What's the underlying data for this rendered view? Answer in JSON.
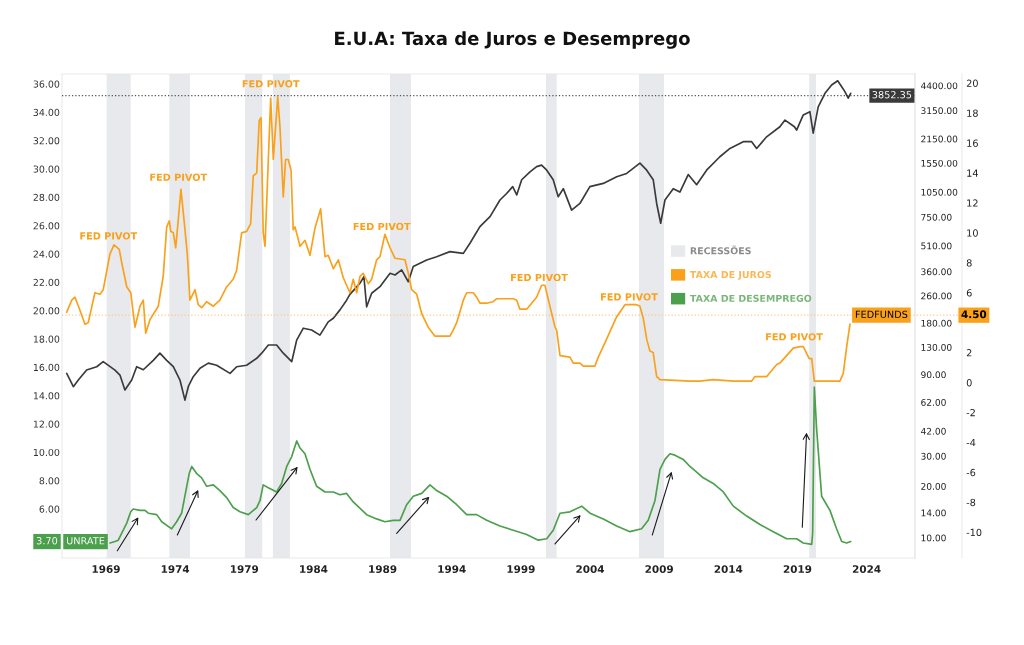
{
  "chart_data": {
    "type": "line",
    "title": "E.U.A: Taxa de Juros e Desemprego",
    "xlim": [
      1965.82,
      2027.5
    ],
    "xticks": [
      1969,
      1974,
      1979,
      1984,
      1989,
      1994,
      1999,
      2004,
      2009,
      2014,
      2019,
      2024
    ],
    "ylim": [
      2.54,
      36.7
    ],
    "yticks": [
      {
        "value": 6,
        "label": "6.00"
      },
      {
        "value": 8,
        "label": "8.00"
      },
      {
        "value": 10,
        "label": "10.00"
      },
      {
        "value": 12,
        "label": "12.00"
      },
      {
        "value": 14,
        "label": "14.00"
      },
      {
        "value": 16,
        "label": "16.00"
      },
      {
        "value": 18,
        "label": "18.00"
      },
      {
        "value": 20,
        "label": "20.00"
      },
      {
        "value": 22,
        "label": "22.00"
      },
      {
        "value": 24,
        "label": "24.00"
      },
      {
        "value": 26,
        "label": "26.00"
      },
      {
        "value": 28,
        "label": "28.00"
      },
      {
        "value": 30,
        "label": "30.00"
      },
      {
        "value": 32,
        "label": "32.00"
      },
      {
        "value": 34,
        "label": "34.00"
      },
      {
        "value": 36,
        "label": "36.00"
      }
    ],
    "y2lim": [
      7.61,
      5150
    ],
    "y2ticks": [
      {
        "value": 10,
        "label": "10.00"
      },
      {
        "value": 14,
        "label": "14.00"
      },
      {
        "value": 20,
        "label": "20.00"
      },
      {
        "value": 30,
        "label": "30.00"
      },
      {
        "value": 42,
        "label": "42.00"
      },
      {
        "value": 62,
        "label": "62.00"
      },
      {
        "value": 90,
        "label": "90.00"
      },
      {
        "value": 130,
        "label": "130.00"
      },
      {
        "value": 180,
        "label": "180.00"
      },
      {
        "value": 260,
        "label": "260.00"
      },
      {
        "value": 360,
        "label": "360.00"
      },
      {
        "value": 510,
        "label": "510.00"
      },
      {
        "value": 750,
        "label": "750.00"
      },
      {
        "value": 1050,
        "label": "1050.00"
      },
      {
        "value": 1550,
        "label": "1550.00"
      },
      {
        "value": 2150,
        "label": "2150.00"
      },
      {
        "value": 3150,
        "label": "3150.00"
      },
      {
        "value": 4400,
        "label": "4400.00"
      }
    ],
    "y3lim": [
      -11.72,
      20.61
    ],
    "y3ticks": [
      -10,
      -8,
      -6,
      -4,
      -2,
      0,
      2,
      6,
      8,
      10,
      12,
      14,
      16,
      18,
      20
    ],
    "log": "y2",
    "legend": "right",
    "series": [
      {
        "axis": "y2",
        "color": "#3a3a3a",
        "x": [
          1966.16,
          1966.64,
          1967.0,
          1967.6,
          1968.33,
          1968.8,
          1969.65,
          1970.01,
          1970.37,
          1970.86,
          1971.22,
          1971.7,
          1972.42,
          1972.9,
          1973.39,
          1973.87,
          1974.35,
          1974.71,
          1974.95,
          1975.31,
          1975.8,
          1976.4,
          1977.0,
          1977.97,
          1978.45,
          1979.17,
          1979.9,
          1980.26,
          1980.74,
          1981.34,
          1981.82,
          1982.43,
          1982.79,
          1983.27,
          1983.87,
          1984.47,
          1985.07,
          1985.44,
          1985.92,
          1986.4,
          1986.64,
          1987.37,
          1987.65,
          1987.85,
          1988.21,
          1988.81,
          1989.54,
          1989.9,
          1990.38,
          1990.86,
          1991.22,
          1992.19,
          1992.91,
          1993.87,
          1994.84,
          1995.32,
          1996.04,
          1996.77,
          1997.49,
          1997.97,
          1998.41,
          1998.7,
          1999.06,
          1999.66,
          2000.14,
          2000.5,
          2000.87,
          2001.34,
          2001.7,
          2002.07,
          2002.67,
          2003.27,
          2003.99,
          2004.96,
          2005.93,
          2006.65,
          2007.61,
          2008.1,
          2008.57,
          2008.82,
          2009.11,
          2009.42,
          2010.02,
          2010.5,
          2011.1,
          2011.71,
          2012.43,
          2013.39,
          2014.12,
          2015.08,
          2015.69,
          2016.05,
          2016.77,
          2017.73,
          2018.1,
          2018.78,
          2018.94,
          2019.42,
          2019.9,
          2020.14,
          2020.5,
          2020.99,
          2021.47,
          2021.91,
          2022.2,
          2022.43,
          2022.67,
          2022.85
        ],
        "values": [
          91.4,
          76.4,
          83.6,
          95.6,
          100,
          107,
          95.6,
          89.4,
          73.1,
          83.6,
          100,
          96,
          109,
          120,
          109,
          100,
          83.6,
          63.8,
          76.4,
          87.4,
          97.9,
          105,
          102,
          91.4,
          100,
          102,
          112,
          120,
          134,
          134,
          120,
          107,
          143,
          168,
          164,
          153,
          183,
          192,
          215,
          245,
          265,
          308,
          336,
          224,
          269,
          294,
          352,
          344,
          368,
          314,
          385,
          421,
          440,
          471,
          460,
          527,
          659,
          754,
          944,
          1030,
          1130,
          1010,
          1240,
          1380,
          1480,
          1510,
          1410,
          1240,
          987,
          1100,
          824,
          901,
          1130,
          1180,
          1290,
          1350,
          1550,
          1410,
          1240,
          901,
          690,
          944,
          1100,
          1050,
          1330,
          1160,
          1410,
          1690,
          1890,
          2070,
          2070,
          1890,
          2210,
          2530,
          2770,
          2530,
          2420,
          2970,
          3100,
          2320,
          3310,
          3970,
          4440,
          4700,
          4340,
          4060,
          3720,
          3970
        ]
      },
      {
        "axis": "y3",
        "name": "TAXA DE JUROS",
        "color": "#f9a11b",
        "x": [
          1966.16,
          1966.52,
          1966.76,
          1967.05,
          1967.48,
          1967.72,
          1968.2,
          1968.57,
          1968.8,
          1969.29,
          1969.58,
          1969.96,
          1970.14,
          1970.5,
          1970.79,
          1971.1,
          1971.46,
          1971.7,
          1971.87,
          1972.18,
          1972.78,
          1973.14,
          1973.39,
          1973.58,
          1973.68,
          1973.87,
          1974.04,
          1974.23,
          1974.42,
          1974.64,
          1974.88,
          1975.07,
          1975.44,
          1975.67,
          1975.92,
          1976.28,
          1976.76,
          1977.24,
          1977.73,
          1978.2,
          1978.45,
          1978.81,
          1979.17,
          1979.46,
          1979.65,
          1979.9,
          1980.08,
          1980.21,
          1980.37,
          1980.5,
          1980.74,
          1980.91,
          1981.1,
          1981.42,
          1981.58,
          1981.82,
          1981.99,
          1982.18,
          1982.38,
          1982.54,
          1982.67,
          1983.03,
          1983.39,
          1983.75,
          1984.11,
          1984.52,
          1984.84,
          1985.07,
          1985.44,
          1985.8,
          1986.16,
          1986.64,
          1986.88,
          1987.13,
          1987.37,
          1987.6,
          1987.97,
          1988.21,
          1988.57,
          1988.81,
          1989.17,
          1989.54,
          1989.9,
          1990.62,
          1990.86,
          1991.1,
          1991.47,
          1991.83,
          1992.3,
          1992.79,
          1993.87,
          1994.11,
          1994.36,
          1994.84,
          1995.08,
          1995.56,
          1995.8,
          1996.04,
          1996.53,
          1997.0,
          1997.25,
          1998.45,
          1998.7,
          1998.93,
          1999.42,
          1999.78,
          2000.14,
          2000.5,
          2000.74,
          2001.1,
          2001.47,
          2001.59,
          2001.83,
          2002.55,
          2002.79,
          2003.27,
          2003.51,
          2004.36,
          2004.6,
          2005.2,
          2005.93,
          2006.53,
          2007.37,
          2007.61,
          2007.85,
          2008.1,
          2008.33,
          2008.57,
          2008.82,
          2009.06,
          2011.23,
          2011.95,
          2012.91,
          2014.36,
          2015.69,
          2015.93,
          2016.78,
          2017.5,
          2017.73,
          2018.7,
          2019.18,
          2019.42,
          2019.85,
          2020.03,
          2020.22,
          2022.07,
          2022.31,
          2022.56,
          2022.8
        ],
        "values": [
          4.7,
          5.5,
          5.7,
          5.0,
          3.9,
          4.0,
          6.0,
          5.9,
          6.2,
          8.6,
          9.2,
          8.9,
          8.0,
          6.4,
          6.0,
          3.7,
          5.1,
          5.5,
          3.3,
          4.2,
          5.1,
          7.1,
          10.4,
          10.8,
          10.1,
          10.0,
          9.0,
          10.9,
          12.9,
          10.9,
          8.6,
          5.5,
          6.2,
          5.2,
          5.0,
          5.4,
          5.1,
          5.5,
          6.4,
          6.9,
          7.5,
          10.0,
          10.1,
          10.6,
          13.8,
          14.0,
          17.5,
          17.7,
          10.0,
          9.1,
          14.9,
          19.0,
          14.9,
          19.1,
          17.1,
          12.4,
          14.9,
          14.9,
          14.2,
          10.2,
          10.4,
          9.1,
          9.5,
          8.5,
          10.3,
          11.6,
          8.4,
          8.5,
          7.6,
          8.2,
          7.0,
          6.0,
          6.9,
          6.0,
          7.1,
          7.3,
          6.6,
          6.9,
          8.2,
          8.4,
          9.9,
          9.0,
          8.3,
          8.2,
          7.3,
          6.2,
          5.9,
          4.6,
          3.7,
          3.1,
          3.1,
          3.5,
          4.0,
          5.5,
          6.0,
          6.0,
          5.7,
          5.3,
          5.3,
          5.4,
          5.6,
          5.6,
          5.5,
          4.9,
          4.9,
          5.3,
          5.7,
          6.5,
          6.5,
          5.1,
          3.7,
          3.5,
          1.8,
          1.7,
          1.3,
          1.3,
          1.1,
          1.1,
          1.7,
          2.9,
          4.4,
          5.2,
          5.2,
          5.1,
          4.3,
          2.9,
          2.1,
          2.0,
          0.4,
          0.2,
          0.1,
          0.1,
          0.2,
          0.1,
          0.1,
          0.4,
          0.4,
          1.2,
          1.3,
          2.3,
          2.4,
          2.4,
          1.6,
          1.6,
          0.1,
          0.1,
          0.6,
          2.4,
          3.9
        ]
      },
      {
        "axis": "y",
        "name": "TAXA DE DESEMPREGO",
        "color": "#4c9f4c",
        "x": [
          1969.29,
          1969.65,
          1969.89,
          1970.14,
          1970.5,
          1970.79,
          1970.97,
          1971.46,
          1971.82,
          1972.06,
          1972.67,
          1973.03,
          1973.75,
          1974.11,
          1974.47,
          1974.84,
          1975.02,
          1975.2,
          1975.56,
          1975.92,
          1976.28,
          1976.76,
          1977.24,
          1977.73,
          1978.2,
          1978.69,
          1979.29,
          1979.9,
          1980.14,
          1980.37,
          1980.74,
          1981.34,
          1981.7,
          1982.07,
          1982.43,
          1982.79,
          1983.03,
          1983.39,
          1983.75,
          1984.23,
          1984.84,
          1985.44,
          1985.92,
          1986.4,
          1986.88,
          1987.85,
          1988.57,
          1989.17,
          1989.77,
          1990.26,
          1990.74,
          1991.22,
          1991.83,
          1992.43,
          1992.91,
          1993.63,
          1994.36,
          1995.08,
          1995.8,
          1996.53,
          1997.49,
          1998.45,
          1999.42,
          2000.26,
          2000.87,
          2001.34,
          2001.83,
          2002.55,
          2003.4,
          2004.0,
          2004.96,
          2005.93,
          2006.89,
          2007.73,
          2008.21,
          2008.7,
          2009.06,
          2009.42,
          2009.78,
          2010.14,
          2010.74,
          2011.23,
          2012.19,
          2012.91,
          2013.64,
          2014.36,
          2015.33,
          2016.29,
          2017.25,
          2018.22,
          2018.94,
          2019.42,
          2020.03,
          2020.1,
          2020.22,
          2020.39,
          2020.75,
          2021.35,
          2021.83,
          2022.2,
          2022.56,
          2022.85
        ],
        "values": [
          3.6,
          3.7,
          3.8,
          4.3,
          5.0,
          5.8,
          6.0,
          5.9,
          5.9,
          5.7,
          5.6,
          5.1,
          4.6,
          5.1,
          5.7,
          7.6,
          8.5,
          9.0,
          8.5,
          8.2,
          7.6,
          7.7,
          7.3,
          6.8,
          6.1,
          5.8,
          5.6,
          6.1,
          6.6,
          7.7,
          7.5,
          7.2,
          7.8,
          9.0,
          9.7,
          10.8,
          10.3,
          9.9,
          8.8,
          7.6,
          7.2,
          7.2,
          7.0,
          7.1,
          6.5,
          5.6,
          5.3,
          5.1,
          5.2,
          5.2,
          6.3,
          6.9,
          7.1,
          7.7,
          7.3,
          6.9,
          6.3,
          5.6,
          5.6,
          5.2,
          4.8,
          4.5,
          4.2,
          3.8,
          3.9,
          4.5,
          5.7,
          5.8,
          6.2,
          5.7,
          5.3,
          4.8,
          4.4,
          4.6,
          5.2,
          6.6,
          8.8,
          9.5,
          9.9,
          9.8,
          9.5,
          9.0,
          8.2,
          7.8,
          7.2,
          6.2,
          5.5,
          4.9,
          4.4,
          3.9,
          3.9,
          3.6,
          3.5,
          4.3,
          14.6,
          11.6,
          6.9,
          5.9,
          4.6,
          3.7,
          3.6,
          3.7
        ]
      }
    ],
    "bands": [
      {
        "axis": "x",
        "from": 1969.05,
        "to": 1970.79,
        "color": "#e8e9ec"
      },
      {
        "axis": "x",
        "from": 1973.58,
        "to": 1975.07,
        "color": "#e8e9ec"
      },
      {
        "axis": "x",
        "from": 1979.05,
        "to": 1980.3,
        "color": "#e8e9ec"
      },
      {
        "axis": "x",
        "from": 1981.07,
        "to": 1982.3,
        "color": "#e8e9ec"
      },
      {
        "axis": "x",
        "from": 1989.54,
        "to": 1991.05,
        "color": "#e8e9ec"
      },
      {
        "axis": "x",
        "from": 2000.82,
        "to": 2001.59,
        "color": "#e8e9ec"
      },
      {
        "axis": "x",
        "from": 2007.54,
        "to": 2009.35,
        "label": "RECESSÕES",
        "color": "#e8e9ec"
      },
      {
        "axis": "x",
        "from": 2019.85,
        "to": 2020.34,
        "color": "#e8e9ec"
      }
    ],
    "ref_lines": [
      {
        "axis": "y2",
        "value": 3852.35,
        "label": "3852.35",
        "color": "#555555",
        "line_style": "dotted"
      },
      {
        "axis": "y3",
        "value": 4.5,
        "label": "4.50",
        "color": "#f9c98a",
        "line_style": "dotted"
      }
    ],
    "annotations": [
      "FED PIVOT",
      "FED PIVOT",
      "FED PIVOT",
      "FED PIVOT",
      "FED PIVOT",
      "FED PIVOT",
      "FED PIVOT",
      "FEDFUNDS",
      "3.70",
      "UNRATE"
    ]
  }
}
